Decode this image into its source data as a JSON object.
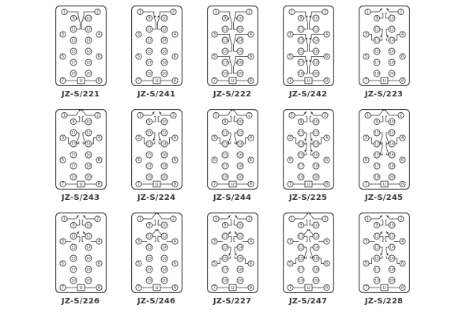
{
  "style": {
    "background": "#ffffff",
    "line_color": "#3f3f3f",
    "text_color": "#2e2e2e",
    "label_color": "#3a3a3a"
  },
  "terminals": {
    "outer": [
      "1",
      "2",
      "3",
      "4",
      "5",
      "6",
      "7",
      "8"
    ],
    "inner_left": [
      "9",
      "11",
      "13",
      "15",
      "17",
      "19"
    ],
    "inner_right": [
      "10",
      "12",
      "14",
      "16",
      "18",
      "20"
    ],
    "power_label": "U"
  },
  "models": [
    {
      "label": "JZ-S/221",
      "motifs": [
        "co1"
      ],
      "variant": "a"
    },
    {
      "label": "JZ-S/241",
      "motifs": [
        "co1"
      ],
      "variant": "b"
    },
    {
      "label": "JZ-S/222",
      "motifs": [
        "co1",
        "co2",
        "co3"
      ],
      "variant": "a"
    },
    {
      "label": "JZ-S/242",
      "motifs": [
        "co1",
        "co2",
        "co3"
      ],
      "variant": "b"
    },
    {
      "label": "JZ-S/223",
      "motifs": [
        "top",
        "mid"
      ],
      "variant": "a"
    },
    {
      "label": "JZ-S/243",
      "motifs": [
        "top",
        "mid"
      ],
      "variant": "b"
    },
    {
      "label": "JZ-S/224",
      "motifs": [
        "top",
        "mid"
      ],
      "variant": "a"
    },
    {
      "label": "JZ-S/244",
      "motifs": [
        "top",
        "mid"
      ],
      "variant": "b"
    },
    {
      "label": "JZ-S/225",
      "motifs": [
        "top",
        "mid",
        "low2"
      ],
      "variant": "a"
    },
    {
      "label": "JZ-S/245",
      "motifs": [
        "top",
        "mid",
        "low2"
      ],
      "variant": "b"
    },
    {
      "label": "JZ-S/226",
      "motifs": [
        "top",
        "flag"
      ],
      "variant": "a"
    },
    {
      "label": "JZ-S/246",
      "motifs": [
        "top",
        "flag"
      ],
      "variant": "b"
    },
    {
      "label": "JZ-S/227",
      "motifs": [
        "top",
        "flag",
        "low"
      ],
      "variant": "a"
    },
    {
      "label": "JZ-S/247",
      "motifs": [
        "top",
        "flag",
        "low"
      ],
      "variant": "b"
    },
    {
      "label": "JZ-S/228",
      "motifs": [
        "top",
        "flag",
        "low"
      ],
      "variant": "a"
    }
  ]
}
